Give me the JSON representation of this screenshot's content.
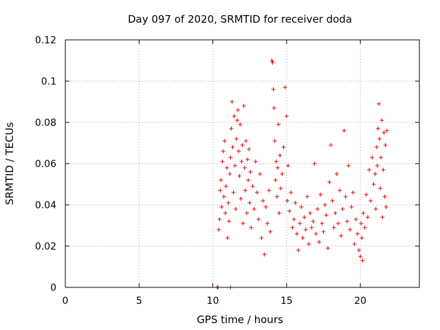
{
  "chart_data": {
    "type": "scatter",
    "title": "Day 097 of 2020, SRMTID for receiver doda",
    "xlabel": "GPS time / hours",
    "ylabel": "SRMTID / TECUs",
    "xlim": [
      0,
      24
    ],
    "ylim": [
      0,
      0.12
    ],
    "xticks": [
      0,
      5,
      10,
      15,
      20
    ],
    "xtick_labels": [
      "0",
      "5",
      "10",
      "15",
      "20"
    ],
    "yticks": [
      0,
      0.02,
      0.04,
      0.06,
      0.08,
      0.1,
      0.12
    ],
    "ytick_labels": [
      "0",
      "0.02",
      "0.04",
      "0.06",
      "0.08",
      "0.1",
      "0.12"
    ],
    "grid": true,
    "marker": "+",
    "marker_color": "#e00000",
    "series": [
      {
        "name": "SRMTID",
        "points": [
          [
            10.3,
            0.0
          ],
          [
            10.35,
            0.0
          ],
          [
            11.2,
            0.0
          ],
          [
            10.4,
            0.028
          ],
          [
            10.45,
            0.033
          ],
          [
            10.5,
            0.047
          ],
          [
            10.55,
            0.052
          ],
          [
            10.6,
            0.039
          ],
          [
            10.65,
            0.061
          ],
          [
            10.7,
            0.066
          ],
          [
            10.75,
            0.044
          ],
          [
            10.8,
            0.071
          ],
          [
            10.85,
            0.036
          ],
          [
            10.9,
            0.049
          ],
          [
            10.95,
            0.058
          ],
          [
            11.0,
            0.024
          ],
          [
            11.05,
            0.041
          ],
          [
            11.1,
            0.032
          ],
          [
            11.15,
            0.055
          ],
          [
            11.2,
            0.063
          ],
          [
            11.25,
            0.077
          ],
          [
            11.3,
            0.09
          ],
          [
            11.35,
            0.068
          ],
          [
            11.4,
            0.046
          ],
          [
            11.45,
            0.083
          ],
          [
            11.5,
            0.059
          ],
          [
            11.55,
            0.038
          ],
          [
            11.6,
            0.072
          ],
          [
            11.65,
            0.081
          ],
          [
            11.7,
            0.086
          ],
          [
            11.75,
            0.066
          ],
          [
            11.8,
            0.054
          ],
          [
            11.85,
            0.079
          ],
          [
            11.9,
            0.043
          ],
          [
            11.95,
            0.061
          ],
          [
            12.0,
            0.069
          ],
          [
            12.05,
            0.031
          ],
          [
            12.1,
            0.088
          ],
          [
            12.15,
            0.058
          ],
          [
            12.2,
            0.047
          ],
          [
            12.25,
            0.071
          ],
          [
            12.3,
            0.036
          ],
          [
            12.35,
            0.062
          ],
          [
            12.4,
            0.052
          ],
          [
            12.45,
            0.067
          ],
          [
            12.5,
            0.041
          ],
          [
            12.55,
            0.056
          ],
          [
            12.6,
            0.029
          ],
          [
            12.7,
            0.049
          ],
          [
            12.8,
            0.038
          ],
          [
            12.9,
            0.061
          ],
          [
            13.0,
            0.046
          ],
          [
            13.1,
            0.033
          ],
          [
            13.2,
            0.055
          ],
          [
            13.3,
            0.024
          ],
          [
            13.4,
            0.042
          ],
          [
            13.5,
            0.016
          ],
          [
            13.6,
            0.039
          ],
          [
            13.7,
            0.031
          ],
          [
            13.8,
            0.047
          ],
          [
            13.9,
            0.027
          ],
          [
            14.0,
            0.11
          ],
          [
            14.05,
            0.109
          ],
          [
            14.1,
            0.096
          ],
          [
            14.15,
            0.087
          ],
          [
            14.2,
            0.071
          ],
          [
            14.25,
            0.052
          ],
          [
            14.3,
            0.061
          ],
          [
            14.35,
            0.044
          ],
          [
            14.4,
            0.058
          ],
          [
            14.45,
            0.079
          ],
          [
            14.5,
            0.036
          ],
          [
            14.55,
            0.064
          ],
          [
            14.6,
            0.048
          ],
          [
            14.7,
            0.055
          ],
          [
            14.8,
            0.068
          ],
          [
            14.9,
            0.097
          ],
          [
            15.0,
            0.083
          ],
          [
            15.05,
            0.042
          ],
          [
            15.1,
            0.059
          ],
          [
            15.2,
            0.037
          ],
          [
            15.3,
            0.046
          ],
          [
            15.4,
            0.029
          ],
          [
            15.5,
            0.033
          ],
          [
            15.6,
            0.041
          ],
          [
            15.7,
            0.026
          ],
          [
            15.8,
            0.018
          ],
          [
            15.9,
            0.031
          ],
          [
            16.0,
            0.039
          ],
          [
            16.1,
            0.024
          ],
          [
            16.2,
            0.034
          ],
          [
            16.3,
            0.028
          ],
          [
            16.4,
            0.044
          ],
          [
            16.5,
            0.021
          ],
          [
            16.6,
            0.036
          ],
          [
            16.7,
            0.029
          ],
          [
            16.8,
            0.032
          ],
          [
            16.9,
            0.06
          ],
          [
            17.0,
            0.026
          ],
          [
            17.1,
            0.038
          ],
          [
            17.2,
            0.022
          ],
          [
            17.3,
            0.045
          ],
          [
            17.4,
            0.031
          ],
          [
            17.5,
            0.027
          ],
          [
            17.6,
            0.04
          ],
          [
            17.7,
            0.035
          ],
          [
            17.8,
            0.019
          ],
          [
            17.9,
            0.051
          ],
          [
            18.0,
            0.069
          ],
          [
            18.1,
            0.042
          ],
          [
            18.2,
            0.029
          ],
          [
            18.3,
            0.036
          ],
          [
            18.4,
            0.055
          ],
          [
            18.5,
            0.031
          ],
          [
            18.6,
            0.047
          ],
          [
            18.7,
            0.025
          ],
          [
            18.8,
            0.038
          ],
          [
            18.9,
            0.076
          ],
          [
            19.0,
            0.044
          ],
          [
            19.1,
            0.032
          ],
          [
            19.2,
            0.059
          ],
          [
            19.3,
            0.028
          ],
          [
            19.4,
            0.039
          ],
          [
            19.5,
            0.046
          ],
          [
            19.6,
            0.021
          ],
          [
            19.7,
            0.033
          ],
          [
            19.8,
            0.026
          ],
          [
            19.9,
            0.018
          ],
          [
            20.0,
            0.015
          ],
          [
            20.05,
            0.031
          ],
          [
            20.1,
            0.024
          ],
          [
            20.15,
            0.013
          ],
          [
            20.2,
            0.036
          ],
          [
            20.3,
            0.029
          ],
          [
            20.4,
            0.045
          ],
          [
            20.5,
            0.034
          ],
          [
            20.6,
            0.057
          ],
          [
            20.7,
            0.042
          ],
          [
            20.8,
            0.063
          ],
          [
            20.9,
            0.05
          ],
          [
            21.0,
            0.055
          ],
          [
            21.05,
            0.038
          ],
          [
            21.1,
            0.068
          ],
          [
            21.15,
            0.059
          ],
          [
            21.2,
            0.077
          ],
          [
            21.25,
            0.089
          ],
          [
            21.3,
            0.072
          ],
          [
            21.35,
            0.048
          ],
          [
            21.4,
            0.063
          ],
          [
            21.45,
            0.081
          ],
          [
            21.5,
            0.034
          ],
          [
            21.55,
            0.057
          ],
          [
            21.6,
            0.075
          ],
          [
            21.65,
            0.044
          ],
          [
            21.7,
            0.069
          ],
          [
            21.75,
            0.039
          ],
          [
            21.8,
            0.076
          ]
        ]
      }
    ]
  }
}
